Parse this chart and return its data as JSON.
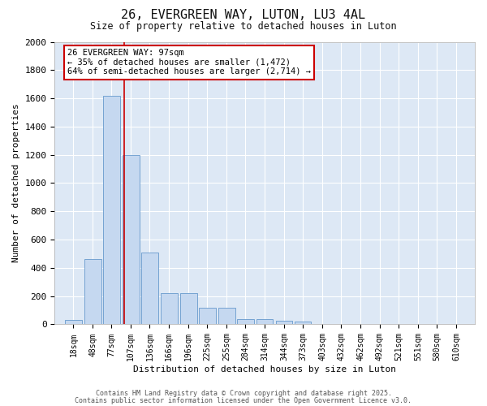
{
  "title1": "26, EVERGREEN WAY, LUTON, LU3 4AL",
  "title2": "Size of property relative to detached houses in Luton",
  "xlabel": "Distribution of detached houses by size in Luton",
  "ylabel": "Number of detached properties",
  "bins": [
    18,
    48,
    77,
    107,
    136,
    166,
    196,
    225,
    255,
    284,
    314,
    344,
    373,
    403,
    432,
    462,
    492,
    521,
    551,
    580,
    610
  ],
  "values": [
    30,
    460,
    1620,
    1200,
    510,
    220,
    220,
    120,
    120,
    40,
    40,
    25,
    20,
    0,
    0,
    0,
    0,
    0,
    0,
    0,
    0
  ],
  "bar_color": "#c5d8f0",
  "bar_edge_color": "#6699cc",
  "bg_color": "#dde8f5",
  "fig_bg_color": "#ffffff",
  "grid_color": "#ffffff",
  "red_line_x": 97,
  "annotation_line1": "26 EVERGREEN WAY: 97sqm",
  "annotation_line2": "← 35% of detached houses are smaller (1,472)",
  "annotation_line3": "64% of semi-detached houses are larger (2,714) →",
  "annotation_box_color": "#ffffff",
  "annotation_box_edge": "#cc0000",
  "footer1": "Contains HM Land Registry data © Crown copyright and database right 2025.",
  "footer2": "Contains public sector information licensed under the Open Government Licence v3.0.",
  "ylim": [
    0,
    2000
  ],
  "yticks": [
    0,
    200,
    400,
    600,
    800,
    1000,
    1200,
    1400,
    1600,
    1800,
    2000
  ],
  "bin_width": 29
}
